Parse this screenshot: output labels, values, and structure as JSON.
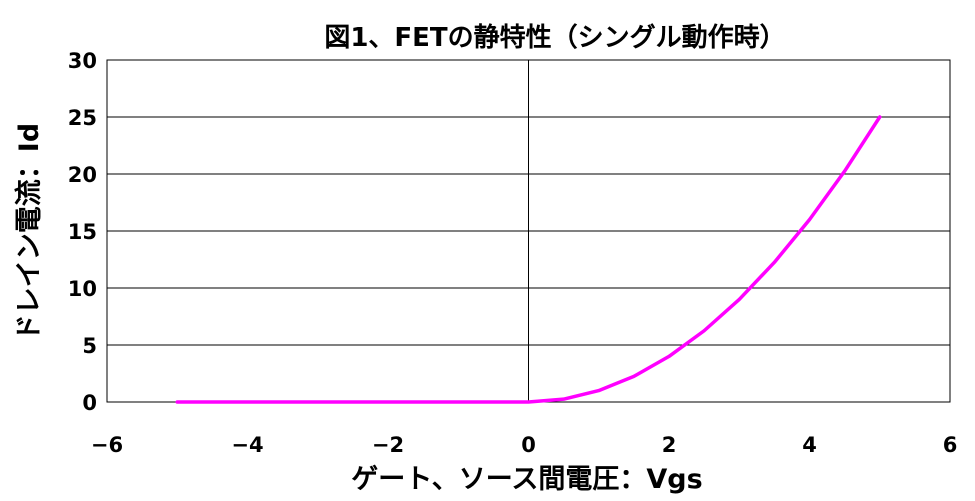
{
  "chart_data": {
    "type": "line",
    "title": "図1、FETの静特性（シングル動作時）",
    "xlabel": "ゲート、ソース間電圧：Vgs",
    "ylabel": "ドレイン電流：Id",
    "xlim": [
      -6,
      6
    ],
    "ylim": [
      0,
      30
    ],
    "x_ticks": [
      -6,
      -4,
      -2,
      0,
      2,
      4,
      6
    ],
    "x_tick_labels": [
      "−6",
      "−4",
      "−2",
      "0",
      "2",
      "4",
      "6"
    ],
    "y_ticks": [
      0,
      5,
      10,
      15,
      20,
      25,
      30
    ],
    "y_tick_labels": [
      "0",
      "5",
      "10",
      "15",
      "20",
      "25",
      "30"
    ],
    "grid": "horizontal",
    "legend": "none",
    "series": [
      {
        "color": "#ff00ff",
        "x": [
          -5,
          -4,
          -3,
          -2,
          -1,
          0,
          0.5,
          1,
          1.5,
          2,
          2.5,
          3,
          3.5,
          4,
          4.5,
          5
        ],
        "y": [
          0,
          0,
          0,
          0,
          0,
          0,
          0.25,
          1,
          2.25,
          4,
          6.25,
          9,
          12.25,
          16,
          20.25,
          25
        ]
      }
    ]
  }
}
